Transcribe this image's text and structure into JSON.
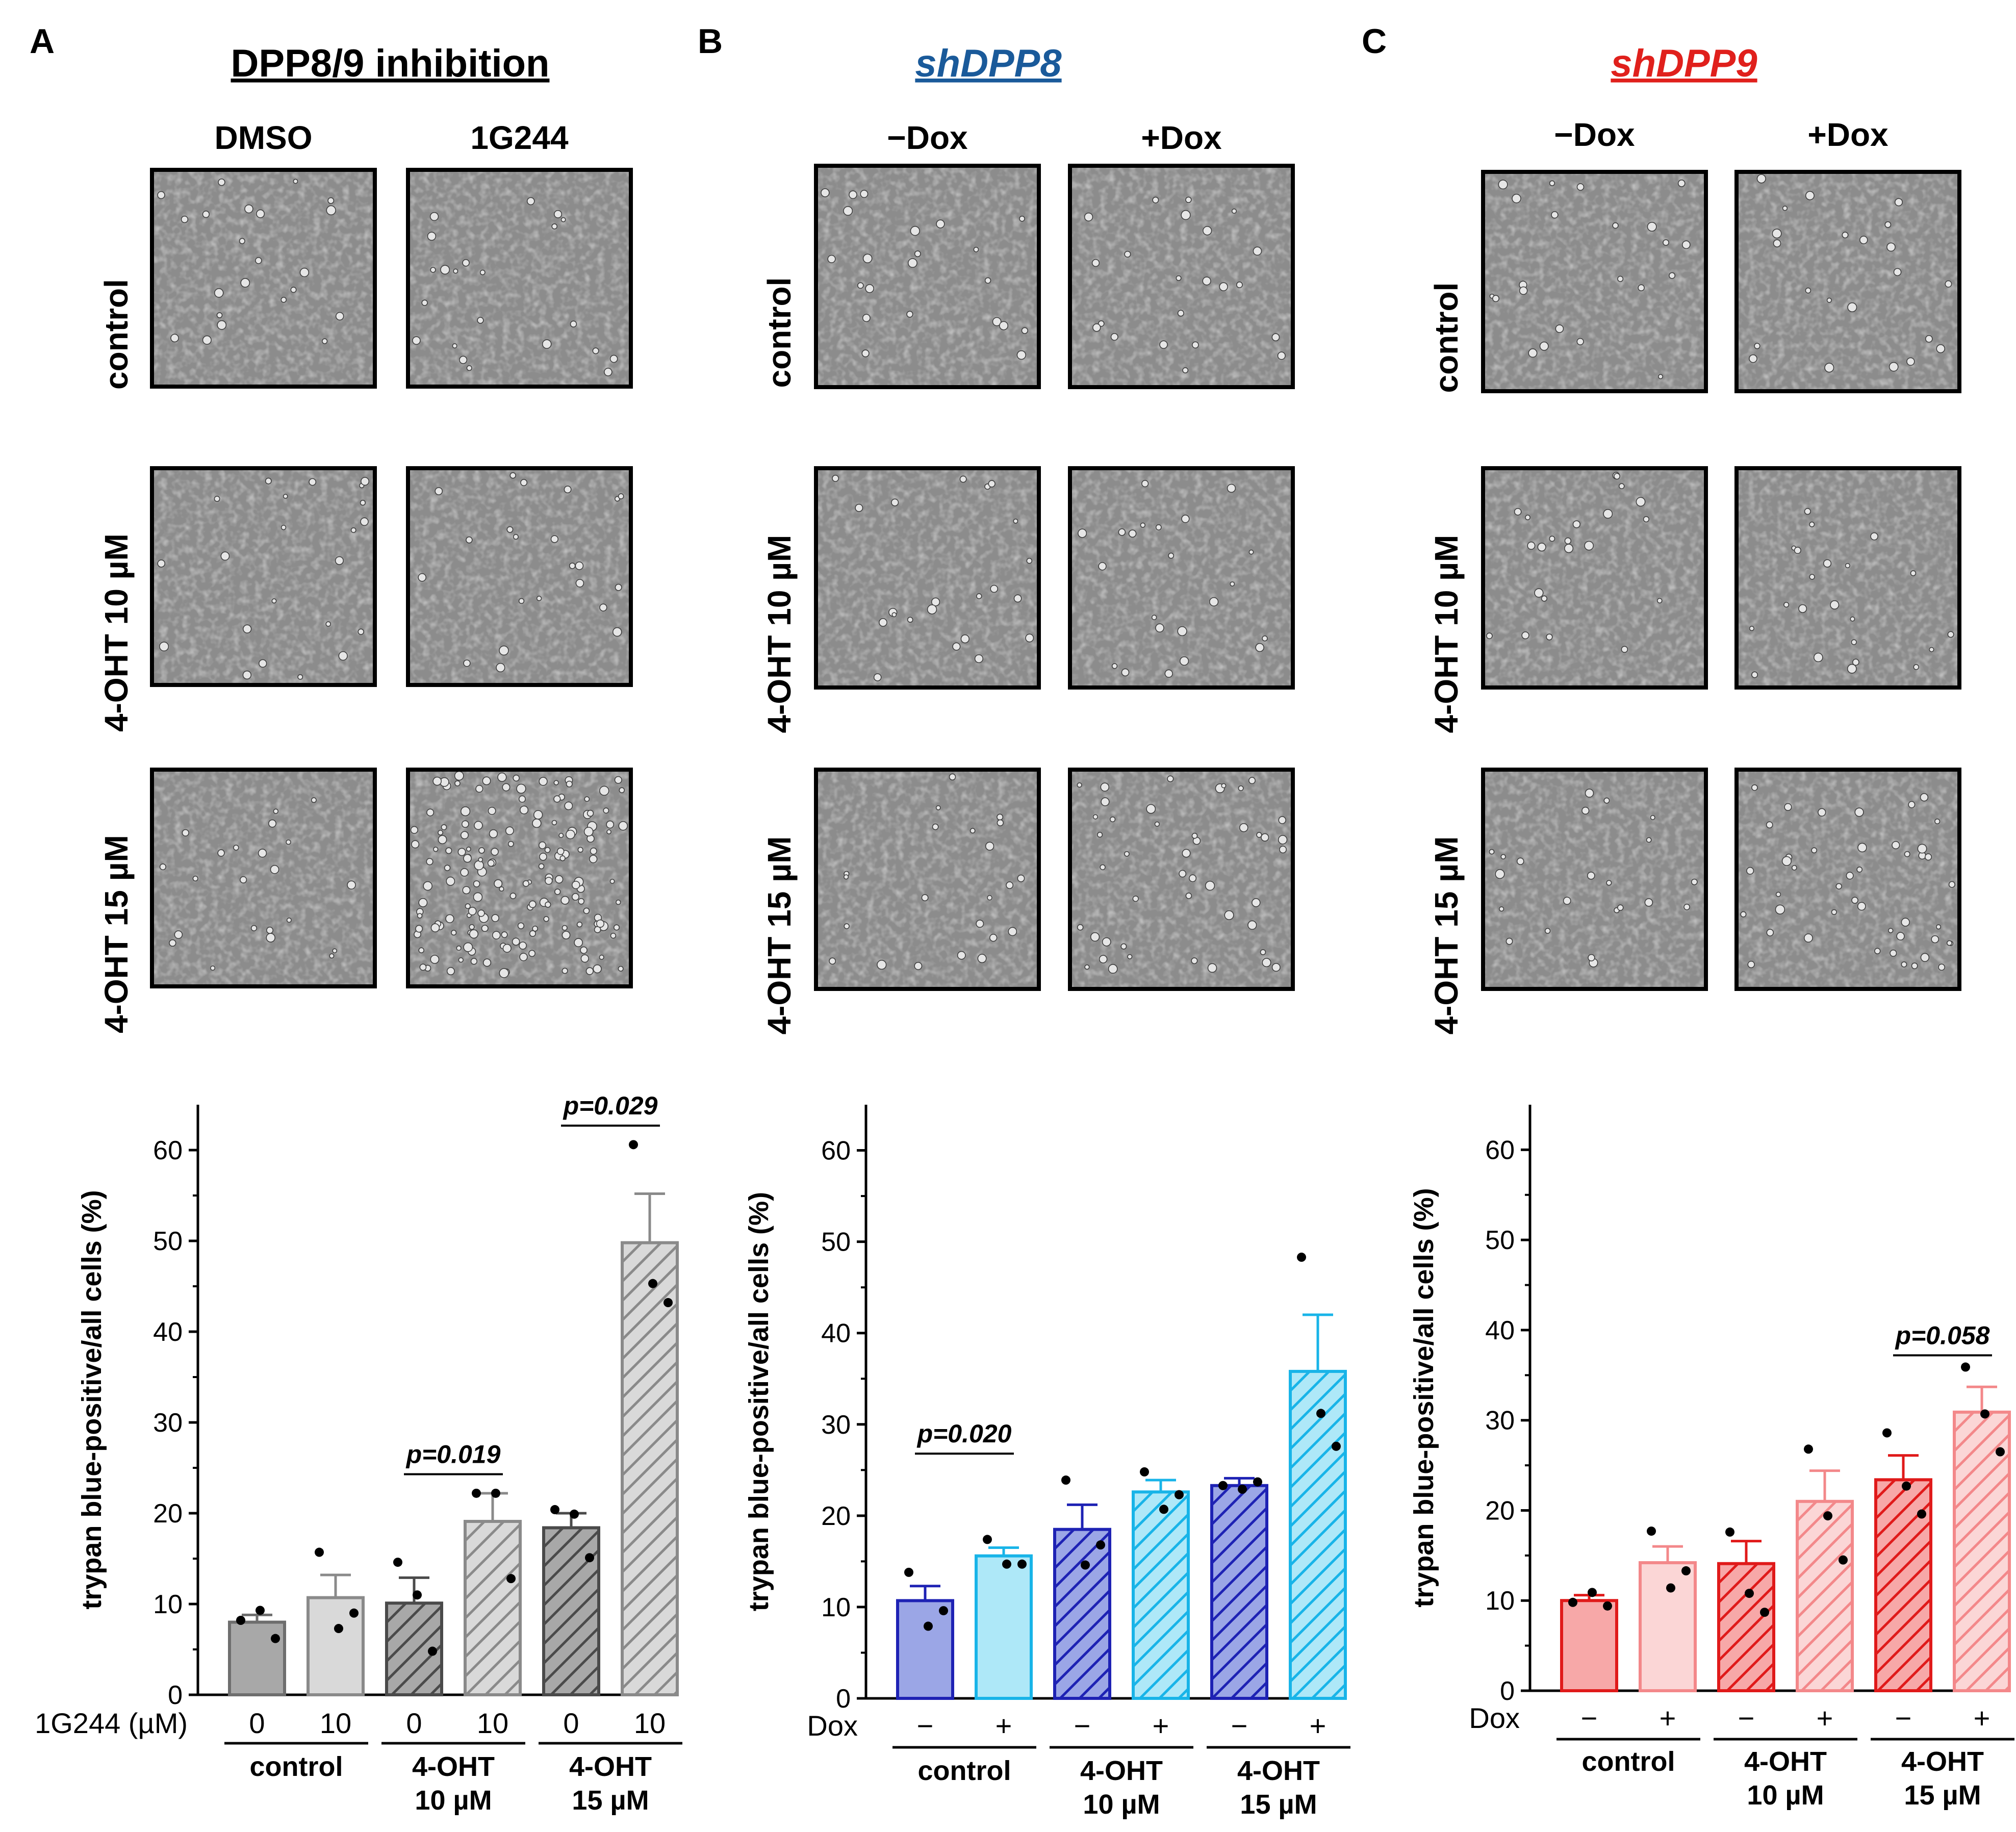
{
  "panels": [
    {
      "letter": "A",
      "title": "DPP8/9 inhibition",
      "title_color": "#000000",
      "title_italic": false,
      "col_labels": [
        "DMSO",
        "1G244"
      ],
      "row_labels": [
        "control",
        "4-OHT 10 µM",
        "4-OHT 15 µM"
      ],
      "micrographs": [
        {
          "row": 0,
          "col": 0,
          "density": "dense"
        },
        {
          "row": 0,
          "col": 1,
          "density": "dense"
        },
        {
          "row": 1,
          "col": 0,
          "density": "dense"
        },
        {
          "row": 1,
          "col": 1,
          "density": "dense"
        },
        {
          "row": 2,
          "col": 0,
          "density": "dense"
        },
        {
          "row": 2,
          "col": 1,
          "density": "rounded-dead"
        }
      ]
    },
    {
      "letter": "B",
      "title": "shDPP8",
      "title_color": "#1a5a9a",
      "title_italic": true,
      "col_labels": [
        "−Dox",
        "+Dox"
      ],
      "row_labels": [
        "control",
        "4-OHT 10 µM",
        "4-OHT 15 µM"
      ],
      "micrographs": [
        {
          "row": 0,
          "col": 0,
          "density": "dense"
        },
        {
          "row": 0,
          "col": 1,
          "density": "dense"
        },
        {
          "row": 1,
          "col": 0,
          "density": "dense"
        },
        {
          "row": 1,
          "col": 1,
          "density": "dense"
        },
        {
          "row": 2,
          "col": 0,
          "density": "dense"
        },
        {
          "row": 2,
          "col": 1,
          "density": "sparse"
        }
      ]
    },
    {
      "letter": "C",
      "title": "shDPP9",
      "title_color": "#e0201c",
      "title_italic": true,
      "col_labels": [
        "−Dox",
        "+Dox"
      ],
      "row_labels": [
        "control",
        "4-OHT 10 µM",
        "4-OHT 15 µM"
      ],
      "micrographs": [
        {
          "row": 0,
          "col": 0,
          "density": "dense"
        },
        {
          "row": 0,
          "col": 1,
          "density": "dense"
        },
        {
          "row": 1,
          "col": 0,
          "density": "dense"
        },
        {
          "row": 1,
          "col": 1,
          "density": "dense"
        },
        {
          "row": 2,
          "col": 0,
          "density": "dense"
        },
        {
          "row": 2,
          "col": 1,
          "density": "sparse"
        }
      ]
    }
  ],
  "chart_data": [
    {
      "type": "bar",
      "panel": "A",
      "ylabel": "trypan blue-positive/all cells (%)",
      "ylim": [
        0,
        65
      ],
      "yticks": [
        0,
        10,
        20,
        30,
        40,
        50,
        60
      ],
      "xrow_label": "1G244 (µM)",
      "xtick_labels": [
        "0",
        "10",
        "0",
        "10",
        "0",
        "10"
      ],
      "groups": [
        {
          "label_lines": [
            "control"
          ]
        },
        {
          "label_lines": [
            "4-OHT",
            "10 µM"
          ]
        },
        {
          "label_lines": [
            "4-OHT",
            "15 µM"
          ]
        }
      ],
      "bars": [
        {
          "value": 8.0,
          "err": 0.8,
          "points": [
            8.2,
            9.3,
            6.2
          ],
          "fill": "#a8a8a8",
          "stroke": "#6e6e6e",
          "hatch": false
        },
        {
          "value": 10.7,
          "err": 2.5,
          "points": [
            15.7,
            7.3,
            9.0
          ],
          "fill": "#d9d9d9",
          "stroke": "#8a8a8a",
          "hatch": false
        },
        {
          "value": 10.1,
          "err": 2.8,
          "points": [
            14.6,
            11.0,
            4.8
          ],
          "fill": "#a8a8a8",
          "stroke": "#4a4a4a",
          "hatch": true
        },
        {
          "value": 19.1,
          "err": 3.1,
          "points": [
            22.2,
            22.2,
            12.8
          ],
          "fill": "#d9d9d9",
          "stroke": "#8a8a8a",
          "hatch": true
        },
        {
          "value": 18.4,
          "err": 1.6,
          "points": [
            20.4,
            19.9,
            15.1
          ],
          "fill": "#a8a8a8",
          "stroke": "#4a4a4a",
          "hatch": true
        },
        {
          "value": 49.8,
          "err": 5.4,
          "points": [
            60.6,
            45.3,
            43.2
          ],
          "fill": "#d9d9d9",
          "stroke": "#8a8a8a",
          "hatch": true
        }
      ],
      "significance": [
        {
          "from": 2,
          "to": 3,
          "y": 24.3,
          "label": "p=0.019"
        },
        {
          "from": 4,
          "to": 5,
          "y": 62.7,
          "label": "p=0.029"
        }
      ]
    },
    {
      "type": "bar",
      "panel": "B",
      "ylabel": "trypan blue-positive/all cells (%)",
      "ylim": [
        0,
        65
      ],
      "yticks": [
        0,
        10,
        20,
        30,
        40,
        50,
        60
      ],
      "xrow_label": "Dox",
      "xtick_labels": [
        "−",
        "+",
        "−",
        "+",
        "−",
        "+"
      ],
      "groups": [
        {
          "label_lines": [
            "control"
          ]
        },
        {
          "label_lines": [
            "4-OHT",
            "10 µM"
          ]
        },
        {
          "label_lines": [
            "4-OHT",
            "15 µM"
          ]
        }
      ],
      "bars": [
        {
          "value": 10.7,
          "err": 1.6,
          "points": [
            13.8,
            7.9,
            9.6
          ],
          "fill": "#9ba6e6",
          "stroke": "#1e22b4",
          "hatch": false
        },
        {
          "value": 15.6,
          "err": 0.9,
          "points": [
            17.4,
            14.7,
            14.7
          ],
          "fill": "#aee8f8",
          "stroke": "#18b4e8",
          "hatch": false
        },
        {
          "value": 18.5,
          "err": 2.7,
          "points": [
            23.9,
            14.6,
            16.8
          ],
          "fill": "#9ba6e6",
          "stroke": "#1e22b4",
          "hatch": true
        },
        {
          "value": 22.6,
          "err": 1.3,
          "points": [
            24.8,
            20.7,
            22.3
          ],
          "fill": "#aee8f8",
          "stroke": "#18b4e8",
          "hatch": true
        },
        {
          "value": 23.3,
          "err": 0.8,
          "points": [
            23.3,
            22.9,
            23.7
          ],
          "fill": "#9ba6e6",
          "stroke": "#1e22b4",
          "hatch": true
        },
        {
          "value": 35.8,
          "err": 6.2,
          "points": [
            48.3,
            31.2,
            27.6
          ],
          "fill": "#aee8f8",
          "stroke": "#18b4e8",
          "hatch": true
        }
      ],
      "significance": [
        {
          "from": 0,
          "to": 1,
          "y": 26.8,
          "label": "p=0.020"
        }
      ]
    },
    {
      "type": "bar",
      "panel": "C",
      "ylabel": "trypan blue-positive/all cells (%)",
      "ylim": [
        0,
        65
      ],
      "yticks": [
        0,
        10,
        20,
        30,
        40,
        50,
        60
      ],
      "xrow_label": "Dox",
      "xtick_labels": [
        "−",
        "+",
        "−",
        "+",
        "−",
        "+"
      ],
      "groups": [
        {
          "label_lines": [
            "control"
          ]
        },
        {
          "label_lines": [
            "4-OHT",
            "10 µM"
          ]
        },
        {
          "label_lines": [
            "4-OHT",
            "15 µM"
          ]
        }
      ],
      "bars": [
        {
          "value": 10.0,
          "err": 0.6,
          "points": [
            9.8,
            10.9,
            9.4
          ],
          "fill": "#f7a8a8",
          "stroke": "#e01a1a",
          "hatch": false
        },
        {
          "value": 14.2,
          "err": 1.8,
          "points": [
            17.7,
            11.4,
            13.3
          ],
          "fill": "#fbd6d6",
          "stroke": "#f3888a",
          "hatch": false
        },
        {
          "value": 14.1,
          "err": 2.5,
          "points": [
            17.6,
            10.8,
            8.7
          ],
          "fill": "#f7a8a8",
          "stroke": "#e01a1a",
          "hatch": true
        },
        {
          "value": 21.0,
          "err": 3.4,
          "points": [
            26.8,
            19.4,
            14.5
          ],
          "fill": "#fbd6d6",
          "stroke": "#f3888a",
          "hatch": true
        },
        {
          "value": 23.4,
          "err": 2.7,
          "points": [
            28.6,
            22.7,
            19.6
          ],
          "fill": "#f7a8a8",
          "stroke": "#e01a1a",
          "hatch": true
        },
        {
          "value": 30.9,
          "err": 2.8,
          "points": [
            35.9,
            30.7,
            26.5
          ],
          "fill": "#fbd6d6",
          "stroke": "#f3888a",
          "hatch": true
        }
      ],
      "significance": [
        {
          "from": 4,
          "to": 5,
          "y": 37.2,
          "label": "p=0.058"
        }
      ]
    }
  ]
}
